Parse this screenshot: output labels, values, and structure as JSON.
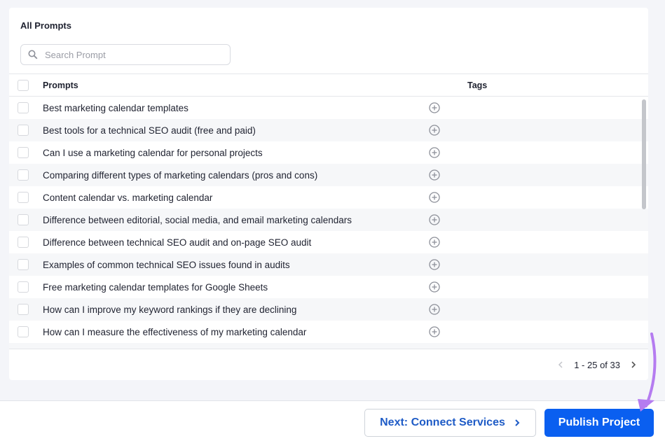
{
  "card": {
    "title": "All Prompts",
    "search_placeholder": "Search Prompt"
  },
  "table": {
    "headers": {
      "prompts": "Prompts",
      "tags": "Tags"
    },
    "rows": [
      "Best marketing calendar templates",
      "Best tools for a technical SEO audit (free and paid)",
      "Can I use a marketing calendar for personal projects",
      "Comparing different types of marketing calendars (pros and cons)",
      "Content calendar vs. marketing calendar",
      "Difference between editorial, social media, and email marketing calendars",
      "Difference between technical SEO audit and on-page SEO audit",
      "Examples of common technical SEO issues found in audits",
      "Free marketing calendar templates for Google Sheets",
      "How can I improve my keyword rankings if they are declining",
      "How can I measure the effectiveness of my marketing calendar",
      ""
    ]
  },
  "pagination": {
    "label": "1 - 25 of 33"
  },
  "footer": {
    "next_label": "Next: Connect Services",
    "publish_label": "Publish Project"
  },
  "colors": {
    "primary": "#0a5ff0",
    "link": "#1e5bc6",
    "annotation_arrow": "#b57cf0"
  }
}
